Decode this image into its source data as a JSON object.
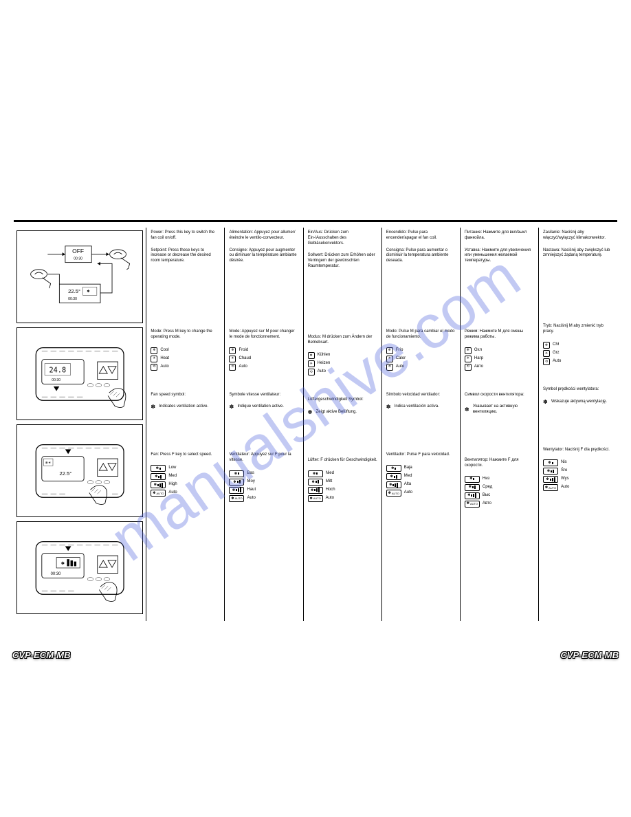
{
  "model": "CVP-ECM-MB",
  "watermark": "manualshive.com",
  "diagrams": {
    "d1": {
      "off_label": "OFF",
      "off_time": "00:30",
      "temp": "22.5°",
      "time": "00:30"
    },
    "d2": {
      "temp": "24.8",
      "time": "00:30"
    },
    "d3": {
      "temp": "22.5°"
    },
    "d4": {
      "time": "00:30"
    }
  },
  "columns": {
    "b": {
      "p1": "Power: Press this key to switch the fan coil on/off.",
      "p2": "Setpoint: Press these keys to increase or decrease the desired room temperature.",
      "p3": "Mode: Press M key to change the operating mode.",
      "mode_items": [
        {
          "sym": "❄",
          "label": "Cool"
        },
        {
          "sym": "☀",
          "label": "Heat"
        },
        {
          "sym": "⟲",
          "label": "Auto"
        }
      ],
      "fan_intro": "Fan speed symbol:",
      "fan_note": "Indicates ventilation active.",
      "speed_intro": "Fan: Press F key to select speed.",
      "speeds": [
        {
          "label": "Low"
        },
        {
          "label": "Med"
        },
        {
          "label": "High"
        },
        {
          "label": "Auto"
        }
      ]
    },
    "c": {
      "p1": "Alimentation: Appuyez pour allumer/éteindre le ventilo-convecteur.",
      "p2": "Consigne: Appuyez pour augmenter ou diminuer la température ambiante désirée.",
      "p3": "Mode: Appuyez sur M pour changer le mode de fonctionnement.",
      "mode_items": [
        {
          "sym": "❄",
          "label": "Froid"
        },
        {
          "sym": "☀",
          "label": "Chaud"
        },
        {
          "sym": "⟲",
          "label": "Auto"
        }
      ],
      "fan_intro": "Symbole vitesse ventilateur:",
      "fan_note": "Indique ventilation active.",
      "speed_intro": "Ventilateur: Appuyez sur F pour la vitesse.",
      "speeds": [
        {
          "label": "Bas"
        },
        {
          "label": "Moy"
        },
        {
          "label": "Haut"
        },
        {
          "label": "Auto"
        }
      ]
    },
    "d": {
      "p1": "Ein/Aus: Drücken zum Ein-/Ausschalten des Gebläsekonvektors.",
      "p2": "Sollwert: Drücken zum Erhöhen oder Verringern der gewünschten Raumtemperatur.",
      "p3": "Modus: M drücken zum Ändern der Betriebsart.",
      "mode_items": [
        {
          "sym": "❄",
          "label": "Kühlen"
        },
        {
          "sym": "☀",
          "label": "Heizen"
        },
        {
          "sym": "⟲",
          "label": "Auto"
        }
      ],
      "fan_intro": "Lüftergeschwindigkeit Symbol:",
      "fan_note": "Zeigt aktive Belüftung.",
      "speed_intro": "Lüfter: F drücken für Geschwindigkeit.",
      "speeds": [
        {
          "label": "Nied"
        },
        {
          "label": "Mitt"
        },
        {
          "label": "Hoch"
        },
        {
          "label": "Auto"
        }
      ]
    },
    "e": {
      "p1": "Encendido: Pulse para encender/apagar el fan coil.",
      "p2": "Consigna: Pulse para aumentar o disminuir la temperatura ambiente deseada.",
      "p3": "Modo: Pulse M para cambiar el modo de funcionamiento.",
      "mode_items": [
        {
          "sym": "❄",
          "label": "Frío"
        },
        {
          "sym": "☀",
          "label": "Calor"
        },
        {
          "sym": "⟲",
          "label": "Auto"
        }
      ],
      "fan_intro": "Símbolo velocidad ventilador:",
      "fan_note": "Indica ventilación activa.",
      "speed_intro": "Ventilador: Pulse F para velocidad.",
      "speeds": [
        {
          "label": "Baja"
        },
        {
          "label": "Med"
        },
        {
          "label": "Alta"
        },
        {
          "label": "Auto"
        }
      ]
    },
    "f": {
      "p1": "Питание: Нажмите для вкл/выкл фанкойла.",
      "p2": "Уставка: Нажмите для увеличения или уменьшения желаемой температуры.",
      "p3": "Режим: Нажмите M для смены режима работы.",
      "mode_items": [
        {
          "sym": "❄",
          "label": "Охл"
        },
        {
          "sym": "☀",
          "label": "Нагр"
        },
        {
          "sym": "⟲",
          "label": "Авто"
        }
      ],
      "fan_intro": "Символ скорости вентилятора:",
      "fan_note": "Указывает на активную вентиляцию.",
      "speed_intro": "Вентилятор: Нажмите F для скорости.",
      "speeds": [
        {
          "label": "Низ"
        },
        {
          "label": "Сред"
        },
        {
          "label": "Выс"
        },
        {
          "label": "Авто"
        }
      ]
    },
    "g": {
      "p1": "Zasilanie: Naciśnij aby włączyć/wyłączyć klimakonwektor.",
      "p2": "Nastawa: Naciśnij aby zwiększyć lub zmniejszyć żądaną temperaturę.",
      "p3": "Tryb: Naciśnij M aby zmienić tryb pracy.",
      "mode_items": [
        {
          "sym": "❄",
          "label": "Chł"
        },
        {
          "sym": "☀",
          "label": "Grz"
        },
        {
          "sym": "⟲",
          "label": "Auto"
        }
      ],
      "fan_intro": "Symbol prędkości wentylatora:",
      "fan_note": "Wskazuje aktywną wentylację.",
      "speed_intro": "Wentylator: Naciśnij F dla prędkości.",
      "speeds": [
        {
          "label": "Nis"
        },
        {
          "label": "Śre"
        },
        {
          "label": "Wys"
        },
        {
          "label": "Auto"
        }
      ]
    }
  }
}
